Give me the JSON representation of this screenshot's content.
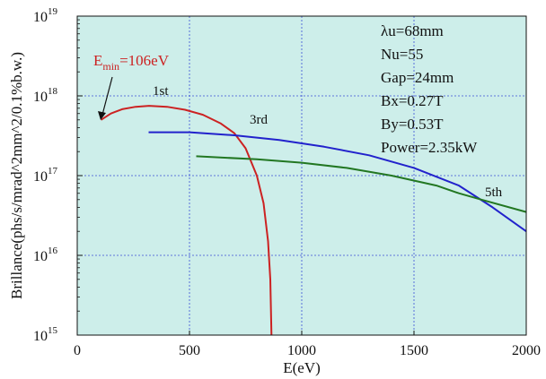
{
  "chart_data": {
    "type": "line",
    "xlabel": "E(eV)",
    "ylabel": "Brillance(phs/s/mrad^2mm^2/0.1%b.w.)",
    "xlim": [
      0,
      2000
    ],
    "ylim": [
      1000000000000000.0,
      1e+19
    ],
    "y_scale": "log",
    "grid": true,
    "x_ticks": [
      "0",
      "500",
      "1000",
      "1500",
      "2000"
    ],
    "y_ticks": [
      {
        "base": "10",
        "exp": "15",
        "value": 1000000000000000.0
      },
      {
        "base": "10",
        "exp": "16",
        "value": 1e+16
      },
      {
        "base": "10",
        "exp": "17",
        "value": 1e+17
      },
      {
        "base": "10",
        "exp": "18",
        "value": 1e+18
      },
      {
        "base": "10",
        "exp": "19",
        "value": 1e+19
      }
    ],
    "colors": {
      "background": "#cdeeea",
      "grid": "#3a4fd6",
      "first": "#cc2222",
      "third": "#2222cc",
      "fifth": "#227722"
    },
    "series": [
      {
        "name": "1st",
        "color": "#cc2222",
        "points": [
          [
            106,
            5e+17
          ],
          [
            150,
            6e+17
          ],
          [
            200,
            6.8e+17
          ],
          [
            260,
            7.3e+17
          ],
          [
            320,
            7.5e+17
          ],
          [
            400,
            7.3e+17
          ],
          [
            480,
            6.7e+17
          ],
          [
            560,
            5.8e+17
          ],
          [
            640,
            4.5e+17
          ],
          [
            700,
            3.4e+17
          ],
          [
            750,
            2.2e+17
          ],
          [
            800,
            1e+17
          ],
          [
            830,
            4.5e+16
          ],
          [
            850,
            1.5e+16
          ],
          [
            860,
            5000000000000000.0
          ],
          [
            865,
            1000000000000000.0
          ]
        ]
      },
      {
        "name": "3rd",
        "color": "#2222cc",
        "points": [
          [
            318,
            3.5e+17
          ],
          [
            500,
            3.5e+17
          ],
          [
            700,
            3.2e+17
          ],
          [
            900,
            2.8e+17
          ],
          [
            1100,
            2.3e+17
          ],
          [
            1300,
            1.8e+17
          ],
          [
            1500,
            1.25e+17
          ],
          [
            1700,
            7.5e+16
          ],
          [
            1850,
            4e+16
          ],
          [
            2000,
            2e+16
          ]
        ]
      },
      {
        "name": "5th",
        "color": "#227722",
        "points": [
          [
            530,
            1.75e+17
          ],
          [
            800,
            1.6e+17
          ],
          [
            1000,
            1.45e+17
          ],
          [
            1200,
            1.25e+17
          ],
          [
            1400,
            1e+17
          ],
          [
            1600,
            7.5e+16
          ],
          [
            1700,
            6e+16
          ],
          [
            1800,
            5e+16
          ],
          [
            2000,
            3.5e+16
          ]
        ]
      }
    ],
    "emin_label": {
      "base": "E",
      "sub": "min",
      "rest": "=106eV"
    },
    "parameters": [
      "λu=68mm",
      "Nu=55",
      "Gap=24mm",
      "Bx=0.27T",
      "By=0.53T",
      "Power=2.35kW"
    ]
  }
}
